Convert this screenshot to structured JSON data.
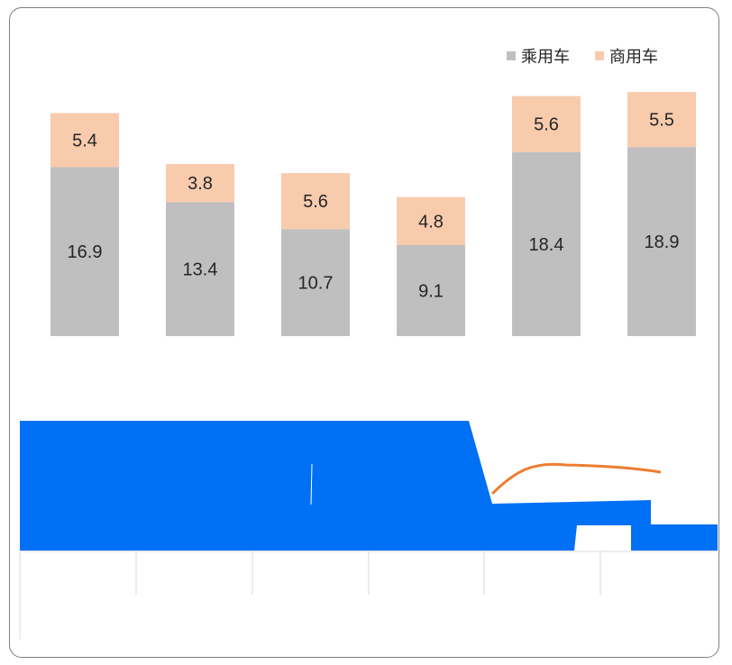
{
  "chart_data": {
    "type": "bar",
    "stacked": true,
    "categories": [
      "",
      "",
      "",
      "",
      "",
      ""
    ],
    "series": [
      {
        "name": "乘用车",
        "values": [
          16.9,
          13.4,
          10.7,
          9.1,
          18.4,
          18.9
        ],
        "color": "#bfbfbf"
      },
      {
        "name": "商用车",
        "values": [
          5.4,
          3.8,
          5.6,
          4.8,
          5.6,
          5.5
        ],
        "color": "#f8cbad"
      }
    ],
    "legend_position": "top-right",
    "grid": false
  },
  "overlay_colors": {
    "blue": "#0070f5",
    "line": "#ed7d31",
    "gridline": "#d9d9d9"
  }
}
